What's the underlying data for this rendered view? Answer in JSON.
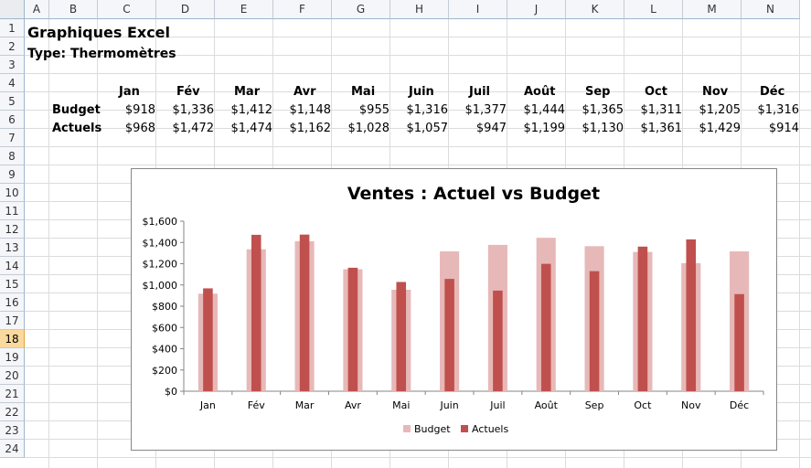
{
  "columns": [
    "A",
    "B",
    "C",
    "D",
    "E",
    "F",
    "G",
    "H",
    "I",
    "J",
    "K",
    "L",
    "M",
    "N"
  ],
  "rows": [
    "1",
    "2",
    "3",
    "4",
    "5",
    "6",
    "7",
    "8",
    "9",
    "10",
    "11",
    "12",
    "13",
    "14",
    "15",
    "16",
    "17",
    "18",
    "19",
    "20",
    "21",
    "22",
    "23",
    "24"
  ],
  "selected_row": "18",
  "sheet": {
    "title": "Graphiques Excel",
    "subtitle": "Type: Thermomètres",
    "months": [
      "Jan",
      "Fév",
      "Mar",
      "Avr",
      "Mai",
      "Juin",
      "Juil",
      "Août",
      "Sep",
      "Oct",
      "Nov",
      "Déc"
    ],
    "budget_label": "Budget",
    "actuels_label": "Actuels",
    "budget_values": [
      "$918",
      "$1,336",
      "$1,412",
      "$1,148",
      "$955",
      "$1,316",
      "$1,377",
      "$1,444",
      "$1,365",
      "$1,311",
      "$1,205",
      "$1,316"
    ],
    "actuels_values": [
      "$968",
      "$1,472",
      "$1,474",
      "$1,162",
      "$1,028",
      "$1,057",
      "$947",
      "$1,199",
      "$1,130",
      "$1,361",
      "$1,429",
      "$914"
    ]
  },
  "colors": {
    "budget": "#e6b9b8",
    "actuels": "#c0504d"
  },
  "chart_data": {
    "type": "bar",
    "title": "Ventes : Actuel vs Budget",
    "categories": [
      "Jan",
      "Fév",
      "Mar",
      "Avr",
      "Mai",
      "Juin",
      "Juil",
      "Août",
      "Sep",
      "Oct",
      "Nov",
      "Déc"
    ],
    "series": [
      {
        "name": "Budget",
        "values": [
          918,
          1336,
          1412,
          1148,
          955,
          1316,
          1377,
          1444,
          1365,
          1311,
          1205,
          1316
        ]
      },
      {
        "name": "Actuels",
        "values": [
          968,
          1472,
          1474,
          1162,
          1028,
          1057,
          947,
          1199,
          1130,
          1361,
          1429,
          914
        ]
      }
    ],
    "ylim": [
      0,
      1600
    ],
    "yticks": [
      "$0",
      "$200",
      "$400",
      "$600",
      "$800",
      "$1,000",
      "$1,200",
      "$1,400",
      "$1,600"
    ],
    "xlabel": "",
    "ylabel": "",
    "legend_position": "bottom",
    "grid": false
  }
}
